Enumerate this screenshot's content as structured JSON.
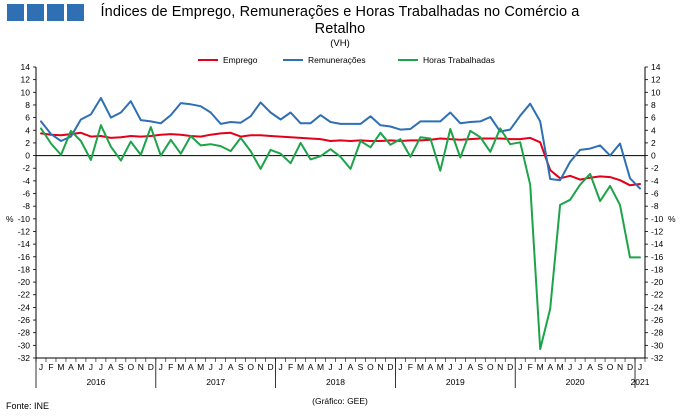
{
  "header": {
    "logo_name": "INE logo",
    "title_line1": "Índices de Emprego, Remunerações e Horas Trabalhadas no Comércio a",
    "title_line2": "Retalho",
    "subtitle": "(VH)"
  },
  "footer": {
    "source": "Fonte: INE",
    "credit": "(Gráfico: GEE)"
  },
  "chart_data": {
    "type": "line",
    "title": "Índices de Emprego, Remunerações e Horas Trabalhadas no Comércio a Retalho",
    "subtitle": "(VH)",
    "ylabel_left": "%",
    "ylabel_right": "%",
    "ylim": [
      -32,
      14
    ],
    "yticks": [
      14,
      12,
      10,
      8,
      6,
      4,
      2,
      0,
      -2,
      -4,
      -6,
      -8,
      -10,
      -12,
      -14,
      -16,
      -18,
      -20,
      -22,
      -24,
      -26,
      -28,
      -30,
      -32
    ],
    "legend_position": "top",
    "grid": false,
    "month_labels": [
      "J",
      "F",
      "M",
      "A",
      "M",
      "J",
      "J",
      "A",
      "S",
      "O",
      "N",
      "D",
      "J",
      "F",
      "M",
      "A",
      "M",
      "J",
      "J",
      "A",
      "S",
      "O",
      "N",
      "D",
      "J",
      "F",
      "M",
      "A",
      "M",
      "J",
      "J",
      "A",
      "S",
      "O",
      "N",
      "D",
      "J",
      "F",
      "M",
      "A",
      "M",
      "J",
      "J",
      "A",
      "S",
      "O",
      "N",
      "D",
      "J",
      "F",
      "M",
      "A",
      "M",
      "J",
      "J",
      "A",
      "S",
      "O",
      "N",
      "D",
      "J"
    ],
    "years": [
      {
        "label": "2016",
        "start": 0,
        "end": 12
      },
      {
        "label": "2017",
        "start": 12,
        "end": 24
      },
      {
        "label": "2018",
        "start": 24,
        "end": 36
      },
      {
        "label": "2019",
        "start": 36,
        "end": 48
      },
      {
        "label": "2020",
        "start": 48,
        "end": 60
      },
      {
        "label": "2021",
        "start": 60,
        "end": 61
      }
    ],
    "series": [
      {
        "name": "Emprego",
        "color": "#e2001a",
        "values": [
          3.5,
          3.3,
          3.2,
          3.4,
          3.6,
          3.0,
          3.1,
          2.8,
          2.9,
          3.1,
          3.0,
          3.1,
          3.3,
          3.4,
          3.3,
          3.1,
          3.0,
          3.3,
          3.5,
          3.6,
          3.0,
          3.2,
          3.2,
          3.1,
          3.0,
          2.9,
          2.8,
          2.7,
          2.6,
          2.3,
          2.4,
          2.3,
          2.4,
          2.3,
          2.3,
          2.4,
          2.3,
          2.4,
          2.4,
          2.5,
          2.7,
          2.6,
          2.5,
          2.6,
          2.7,
          2.7,
          2.7,
          2.6,
          2.6,
          2.8,
          2.1,
          -2.3,
          -3.6,
          -3.2,
          -3.8,
          -3.5,
          -3.3,
          -3.4,
          -3.9,
          -4.7,
          -4.5
        ]
      },
      {
        "name": "Remunerações",
        "color": "#2f6fb3",
        "values": [
          5.4,
          3.4,
          2.3,
          3.0,
          5.7,
          6.5,
          9.1,
          6.0,
          6.8,
          8.6,
          5.6,
          5.4,
          5.1,
          6.4,
          8.3,
          8.1,
          7.8,
          6.8,
          5.0,
          5.3,
          5.2,
          6.2,
          8.4,
          6.8,
          5.7,
          6.8,
          5.1,
          5.1,
          6.4,
          5.3,
          5.0,
          5.0,
          5.0,
          6.2,
          4.8,
          4.6,
          4.1,
          4.2,
          5.4,
          5.4,
          5.4,
          6.8,
          5.1,
          5.3,
          5.4,
          6.1,
          3.8,
          4.1,
          6.3,
          8.2,
          5.4,
          -3.7,
          -3.9,
          -1.0,
          0.9,
          1.1,
          1.6,
          0.0,
          1.9,
          -3.6,
          -5.2
        ]
      },
      {
        "name": "Horas Trabalhadas",
        "color": "#1da34a",
        "values": [
          4.3,
          1.9,
          0.1,
          3.9,
          2.3,
          -0.7,
          4.8,
          1.4,
          -0.8,
          2.2,
          0.1,
          4.5,
          0.0,
          2.5,
          0.3,
          3.1,
          1.6,
          1.8,
          1.5,
          0.7,
          2.8,
          0.7,
          -2.1,
          0.9,
          0.3,
          -1.2,
          2.0,
          -0.6,
          -0.1,
          1.0,
          -0.2,
          -2.1,
          2.3,
          1.3,
          3.6,
          1.7,
          2.6,
          -0.2,
          2.9,
          2.7,
          -2.4,
          4.2,
          -0.3,
          3.9,
          2.9,
          0.6,
          4.3,
          1.8,
          2.1,
          -4.6,
          -30.6,
          -24.2,
          -7.8,
          -7.0,
          -4.6,
          -2.9,
          -7.2,
          -4.8,
          -7.8,
          -16.1,
          -16.1
        ]
      }
    ]
  }
}
